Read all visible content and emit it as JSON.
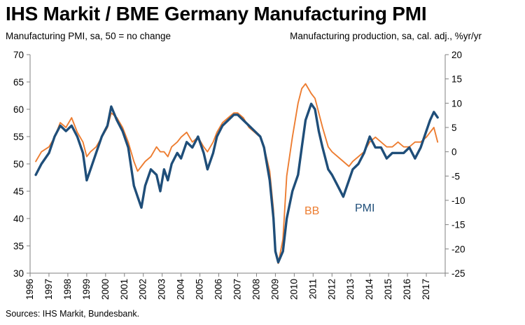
{
  "title": "IHS Markit / BME Germany Manufacturing PMI",
  "left_axis_label": "Manufacturing PMI, sa, 50 = no change",
  "right_axis_label": "Manufacturing production, sa, cal. adj., %yr/yr",
  "source": "Sources: IHS Markit, Bundesbank.",
  "colors": {
    "pmi": "#1f4e79",
    "bb": "#ed7d31"
  },
  "chart_data": {
    "type": "line",
    "grid": false,
    "legend": "inline labels",
    "x_ticks": [
      "1996",
      "1997",
      "1998",
      "1999",
      "2000",
      "2001",
      "2002",
      "2003",
      "2004",
      "2005",
      "2006",
      "2007",
      "2008",
      "2009",
      "2010",
      "2011",
      "2012",
      "2013",
      "2014",
      "2015",
      "2016",
      "2017"
    ],
    "left_axis": {
      "ylim": [
        30,
        70
      ],
      "ticks": [
        "30",
        "35",
        "40",
        "45",
        "50",
        "55",
        "60",
        "65",
        "70"
      ]
    },
    "right_axis": {
      "ylim": [
        -25,
        20
      ],
      "ticks": [
        "-25",
        "-20",
        "-15",
        "-10",
        "-5",
        "0",
        "5",
        "10",
        "15",
        "20"
      ]
    },
    "series": [
      {
        "name": "PMI",
        "axis": "left",
        "color": "#1f4e79",
        "x": [
          1996.3,
          1996.6,
          1997.0,
          1997.3,
          1997.6,
          1997.9,
          1998.2,
          1998.5,
          1998.8,
          1999.0,
          1999.2,
          1999.5,
          1999.8,
          2000.1,
          2000.3,
          2000.6,
          2000.9,
          2001.2,
          2001.5,
          2001.7,
          2001.9,
          2002.1,
          2002.4,
          2002.7,
          2002.9,
          2003.1,
          2003.3,
          2003.5,
          2003.8,
          2004.0,
          2004.3,
          2004.6,
          2004.9,
          2005.2,
          2005.4,
          2005.7,
          2005.9,
          2006.2,
          2006.5,
          2006.8,
          2007.0,
          2007.3,
          2007.6,
          2007.9,
          2008.2,
          2008.4,
          2008.7,
          2008.9,
          2009.0,
          2009.15,
          2009.4,
          2009.6,
          2009.9,
          2010.2,
          2010.4,
          2010.6,
          2010.9,
          2011.1,
          2011.3,
          2011.5,
          2011.8,
          2012.0,
          2012.3,
          2012.6,
          2012.9,
          2013.1,
          2013.4,
          2013.7,
          2014.0,
          2014.3,
          2014.6,
          2014.9,
          2015.2,
          2015.5,
          2015.8,
          2016.1,
          2016.4,
          2016.7,
          2017.0,
          2017.2,
          2017.4,
          2017.6
        ],
        "values": [
          48,
          50,
          52,
          55,
          57,
          56,
          57,
          55,
          52,
          47,
          49,
          52,
          55,
          57,
          60.5,
          58,
          56,
          53,
          46,
          44,
          42,
          46,
          49,
          48,
          45,
          49,
          47,
          50,
          52,
          51,
          54,
          53,
          55,
          52,
          49,
          52,
          55,
          57,
          58,
          59,
          59,
          58,
          57,
          56,
          55,
          53,
          47,
          40,
          34,
          32,
          34,
          40,
          45,
          48,
          53,
          58,
          61,
          60,
          56,
          53,
          49,
          48,
          46,
          44,
          47,
          49,
          50,
          52,
          55,
          53,
          53,
          51,
          52,
          52,
          52,
          53,
          51,
          53,
          56,
          58,
          59.5,
          58.5
        ]
      },
      {
        "name": "BB",
        "axis": "right",
        "color": "#ed7d31",
        "x": [
          1996.3,
          1996.6,
          1997.0,
          1997.3,
          1997.6,
          1997.9,
          1998.2,
          1998.5,
          1998.8,
          1999.0,
          1999.2,
          1999.5,
          1999.8,
          2000.1,
          2000.3,
          2000.6,
          2000.9,
          2001.2,
          2001.5,
          2001.7,
          2001.9,
          2002.1,
          2002.4,
          2002.7,
          2002.9,
          2003.1,
          2003.3,
          2003.5,
          2003.8,
          2004.0,
          2004.3,
          2004.6,
          2004.9,
          2005.2,
          2005.4,
          2005.7,
          2005.9,
          2006.2,
          2006.5,
          2006.8,
          2007.0,
          2007.3,
          2007.6,
          2007.9,
          2008.2,
          2008.4,
          2008.7,
          2008.9,
          2009.0,
          2009.15,
          2009.4,
          2009.6,
          2009.9,
          2010.2,
          2010.4,
          2010.6,
          2010.9,
          2011.1,
          2011.3,
          2011.5,
          2011.8,
          2012.0,
          2012.3,
          2012.6,
          2012.9,
          2013.1,
          2013.4,
          2013.7,
          2014.0,
          2014.3,
          2014.6,
          2014.9,
          2015.2,
          2015.5,
          2015.8,
          2016.1,
          2016.4,
          2016.7,
          2017.0,
          2017.2,
          2017.4,
          2017.6
        ],
        "values": [
          -2,
          0,
          1,
          3,
          6,
          5,
          7,
          4,
          2,
          -1,
          0,
          1,
          3,
          5,
          8,
          7,
          5,
          2,
          -2,
          -4,
          -3,
          -2,
          -1,
          1,
          0,
          0,
          -1,
          1,
          2,
          3,
          4,
          2,
          3,
          1,
          0,
          2,
          4,
          6,
          7,
          8,
          8,
          7,
          5,
          4,
          3,
          1,
          -4,
          -12,
          -20,
          -23,
          -18,
          -5,
          3,
          10,
          13,
          14,
          12,
          11,
          8,
          5,
          1,
          0,
          -1,
          -2,
          -3,
          -2,
          -1,
          0,
          2,
          3,
          2,
          1,
          1,
          2,
          1,
          1,
          2,
          2,
          3,
          4,
          5,
          2
        ]
      }
    ],
    "annotations": [
      {
        "text": "BB",
        "series": "BB"
      },
      {
        "text": "PMI",
        "series": "PMI"
      }
    ]
  }
}
